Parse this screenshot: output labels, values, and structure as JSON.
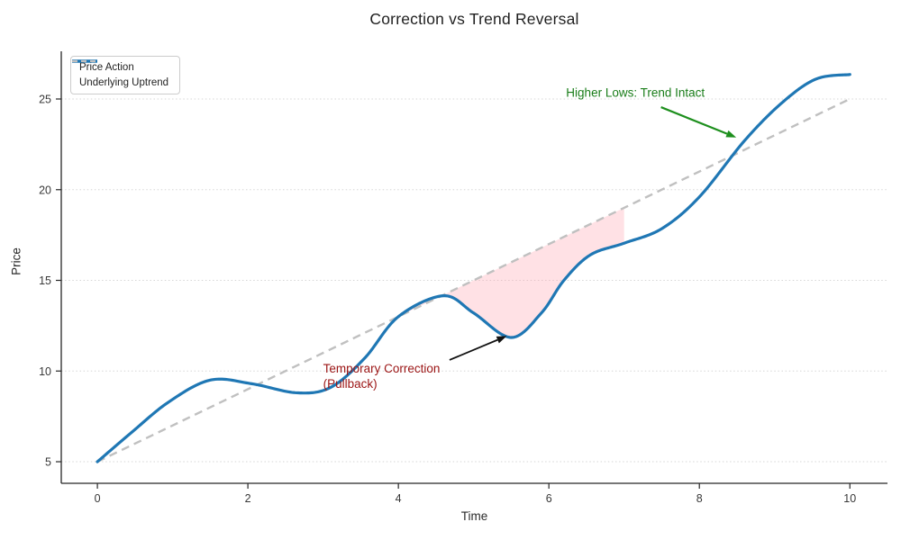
{
  "title": "Correction vs Trend Reversal",
  "axes": {
    "xlabel": "Time",
    "ylabel": "Price",
    "x_ticks": [
      0,
      2,
      4,
      6,
      8,
      10
    ],
    "y_ticks": [
      5,
      10,
      15,
      20,
      25
    ],
    "xlim": [
      -0.48,
      10.5
    ],
    "ylim": [
      3.81,
      27.63
    ],
    "grid": "horizontal-dotted"
  },
  "legend": {
    "position": "upper-left",
    "items": [
      {
        "label": "Price Action",
        "color": "#1f77b4",
        "dashed": false
      },
      {
        "label": "Underlying Uptrend",
        "color": "#c0c0c0",
        "dashed": true
      }
    ]
  },
  "chart_data": {
    "type": "line",
    "title": "Correction vs Trend Reversal",
    "xlabel": "Time",
    "ylabel": "Price",
    "series": [
      {
        "name": "Price Action",
        "color": "#1f77b4",
        "style": "solid",
        "width": 3.2,
        "x": [
          0,
          0.45,
          0.95,
          1.5,
          2.05,
          2.65,
          3.1,
          3.55,
          4.0,
          4.6,
          5.0,
          5.5,
          5.9,
          6.2,
          6.55,
          7.0,
          7.5,
          8.0,
          8.6,
          9.1,
          9.55,
          10.0
        ],
        "y": [
          5.0,
          6.6,
          8.3,
          9.5,
          9.3,
          8.8,
          9.1,
          10.7,
          13.0,
          14.15,
          13.2,
          11.85,
          13.2,
          15.0,
          16.4,
          17.05,
          17.85,
          19.6,
          22.7,
          24.8,
          26.1,
          26.35
        ]
      },
      {
        "name": "Underlying Uptrend",
        "color": "#c0c0c0",
        "style": "dashed",
        "width": 2.4,
        "x": [
          0,
          10
        ],
        "y": [
          5,
          25
        ]
      }
    ],
    "fill_between": {
      "description": "correction zone where price dips below the uptrend",
      "x_range": [
        4.0,
        7.0
      ],
      "upper": "Underlying Uptrend",
      "lower": "Price Action",
      "color": "rgba(255, 168, 180, 0.35)"
    },
    "annotations": [
      {
        "id": "correction",
        "text_lines": [
          "Temporary Correction",
          "(Pullback)"
        ],
        "color": "#9b1414",
        "align": "left",
        "text_x": 3.0,
        "text_y": 10.55,
        "arrow": {
          "color": "#111111",
          "width": 1.8,
          "x1": 4.68,
          "y1": 10.61,
          "x2": 5.44,
          "y2": 11.93
        }
      },
      {
        "id": "higher-lows",
        "text_lines": [
          "Higher Lows: Trend Intact"
        ],
        "color": "#1a7d1a",
        "align": "center",
        "text_x": 7.15,
        "text_y": 25.35,
        "arrow": {
          "color": "#1d8f1d",
          "width": 2.2,
          "x1": 7.49,
          "y1": 24.55,
          "x2": 8.49,
          "y2": 22.88
        }
      }
    ]
  }
}
